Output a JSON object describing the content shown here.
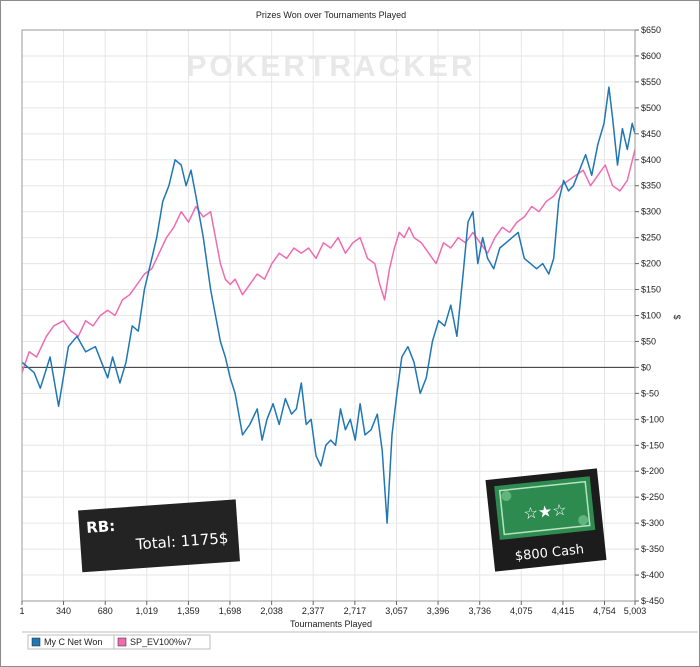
{
  "chart_data": {
    "type": "line",
    "title": "Prizes Won over Tournaments Played",
    "xlabel": "Tournaments Played",
    "ylabel": "$",
    "x_ticks": [
      "1",
      "340",
      "680",
      "1,019",
      "1,359",
      "1,698",
      "2,038",
      "2,377",
      "2,717",
      "3,057",
      "3,396",
      "3,736",
      "4,075",
      "4,415",
      "4,754",
      "5,003"
    ],
    "y_ticks": [
      "$650",
      "$600",
      "$550",
      "$500",
      "$450",
      "$400",
      "$350",
      "$300",
      "$250",
      "$200",
      "$150",
      "$100",
      "$50",
      "$0",
      "$-50",
      "$-100",
      "$-150",
      "$-200",
      "$-250",
      "$-300",
      "$-350",
      "$-400",
      "$-450"
    ],
    "xlim": [
      1,
      5003
    ],
    "ylim": [
      -450,
      650
    ],
    "y_axis_side": "right",
    "grid": true,
    "zero_line": true,
    "legend_position": "bottom-left",
    "series": [
      {
        "name": "My C Net Won",
        "color": "#1f77b4",
        "x": [
          1,
          100,
          150,
          230,
          300,
          380,
          450,
          520,
          600,
          650,
          700,
          740,
          800,
          850,
          900,
          950,
          1000,
          1050,
          1100,
          1150,
          1200,
          1250,
          1300,
          1340,
          1380,
          1420,
          1480,
          1540,
          1580,
          1620,
          1660,
          1700,
          1740,
          1800,
          1860,
          1920,
          1960,
          2000,
          2050,
          2100,
          2150,
          2200,
          2240,
          2280,
          2320,
          2360,
          2400,
          2440,
          2480,
          2520,
          2560,
          2600,
          2640,
          2680,
          2720,
          2760,
          2800,
          2850,
          2900,
          2940,
          2980,
          3020,
          3060,
          3100,
          3150,
          3200,
          3250,
          3300,
          3350,
          3400,
          3450,
          3500,
          3550,
          3600,
          3640,
          3680,
          3720,
          3760,
          3800,
          3850,
          3900,
          3950,
          4000,
          4050,
          4100,
          4150,
          4200,
          4250,
          4300,
          4340,
          4380,
          4420,
          4460,
          4500,
          4550,
          4600,
          4650,
          4700,
          4750,
          4790,
          4820,
          4860,
          4900,
          4940,
          4980,
          5003
        ],
        "y": [
          10,
          -10,
          -40,
          20,
          -75,
          40,
          60,
          30,
          40,
          10,
          -20,
          20,
          -30,
          10,
          80,
          70,
          150,
          200,
          250,
          320,
          350,
          400,
          390,
          350,
          380,
          330,
          250,
          150,
          100,
          50,
          20,
          -20,
          -50,
          -130,
          -110,
          -80,
          -140,
          -100,
          -70,
          -110,
          -60,
          -90,
          -80,
          -30,
          -110,
          -100,
          -170,
          -190,
          -150,
          -140,
          -150,
          -80,
          -120,
          -100,
          -140,
          -70,
          -130,
          -120,
          -90,
          -160,
          -300,
          -130,
          -50,
          20,
          40,
          10,
          -50,
          -20,
          50,
          90,
          80,
          120,
          60,
          180,
          280,
          300,
          200,
          250,
          210,
          190,
          230,
          240,
          250,
          260,
          210,
          200,
          190,
          200,
          180,
          210,
          320,
          360,
          340,
          350,
          380,
          410,
          370,
          430,
          470,
          540,
          480,
          390,
          460,
          420,
          470,
          450
        ]
      },
      {
        "name": "SP_EV100%v7",
        "color": "#f06bb2",
        "x": [
          1,
          60,
          120,
          200,
          260,
          340,
          400,
          460,
          520,
          580,
          640,
          700,
          760,
          820,
          880,
          940,
          1000,
          1060,
          1120,
          1180,
          1240,
          1300,
          1360,
          1420,
          1480,
          1540,
          1580,
          1620,
          1660,
          1700,
          1740,
          1800,
          1860,
          1920,
          1980,
          2040,
          2100,
          2160,
          2220,
          2280,
          2340,
          2400,
          2460,
          2520,
          2580,
          2640,
          2700,
          2760,
          2820,
          2880,
          2920,
          2960,
          3000,
          3040,
          3080,
          3120,
          3160,
          3200,
          3260,
          3320,
          3380,
          3440,
          3500,
          3560,
          3620,
          3680,
          3740,
          3800,
          3860,
          3920,
          3980,
          4040,
          4100,
          4160,
          4220,
          4280,
          4340,
          4400,
          4460,
          4520,
          4580,
          4640,
          4700,
          4760,
          4820,
          4880,
          4940,
          5003
        ],
        "y": [
          -10,
          30,
          20,
          60,
          80,
          90,
          70,
          60,
          90,
          80,
          100,
          110,
          100,
          130,
          140,
          160,
          180,
          190,
          220,
          250,
          270,
          300,
          280,
          310,
          290,
          300,
          250,
          200,
          170,
          160,
          170,
          140,
          160,
          180,
          170,
          200,
          220,
          210,
          230,
          220,
          230,
          210,
          240,
          230,
          250,
          220,
          240,
          250,
          210,
          200,
          160,
          130,
          190,
          230,
          260,
          250,
          270,
          250,
          240,
          220,
          200,
          240,
          230,
          250,
          240,
          260,
          240,
          220,
          250,
          270,
          260,
          280,
          290,
          310,
          300,
          320,
          330,
          350,
          360,
          370,
          380,
          350,
          370,
          390,
          350,
          340,
          360,
          420
        ]
      }
    ]
  },
  "overlays": {
    "watermark": "POKERTRACKER",
    "rakeback_label": "RB:",
    "rakeback_total": "Total: 1175$",
    "cash_badge_label": "$800 Cash"
  },
  "legend": {
    "items": [
      {
        "label": "My C Net Won",
        "color": "#1f77b4"
      },
      {
        "label": "SP_EV100%v7",
        "color": "#f06bb2"
      }
    ]
  },
  "colors": {
    "grid": "#e6e6e6",
    "zero_line": "#333333",
    "overlay_dark": "#222222",
    "badge_green": "#2e8b4f"
  }
}
